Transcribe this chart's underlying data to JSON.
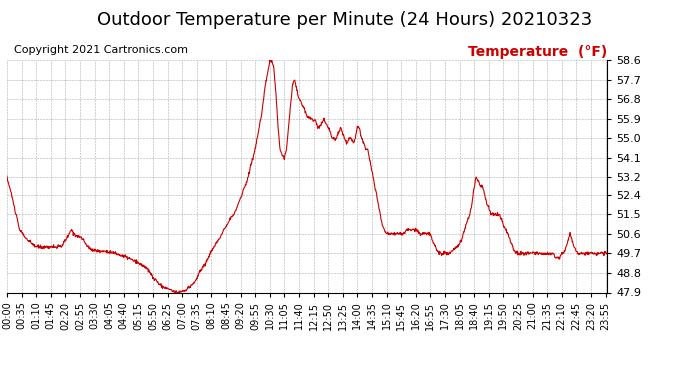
{
  "title": "Outdoor Temperature per Minute (24 Hours) 20210323",
  "copyright_text": "Copyright 2021 Cartronics.com",
  "legend_text": "Temperature  (°F)",
  "line_color": "#cc0000",
  "background_color": "#ffffff",
  "grid_color": "#999999",
  "ylim": [
    47.9,
    58.6
  ],
  "yticks": [
    47.9,
    48.8,
    49.7,
    50.6,
    51.5,
    52.4,
    53.2,
    54.1,
    55.0,
    55.9,
    56.8,
    57.7,
    58.6
  ],
  "title_fontsize": 13,
  "legend_fontsize": 10,
  "copyright_fontsize": 8,
  "tick_fontsize": 7,
  "ytick_fontsize": 8,
  "linewidth": 0.8,
  "tick_interval": 35
}
